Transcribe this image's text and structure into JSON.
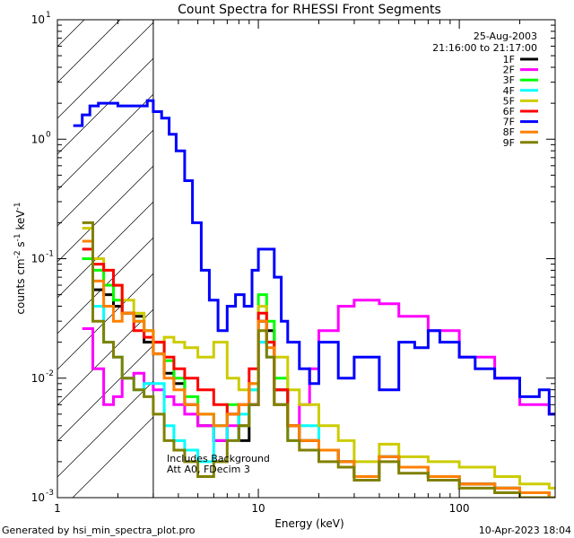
{
  "chart_data": {
    "type": "line",
    "title": "Count Spectra for RHESSI Front Segments",
    "date_label": "25-Aug-2003",
    "time_label": "21:16:00 to 21:17:00",
    "xlabel": "Energy (keV)",
    "ylabel_main": "counts cm",
    "ylabel_sup1": "-2",
    "ylabel_mid": " s",
    "ylabel_sup2": "-1",
    "ylabel_end": " keV",
    "ylabel_sup3": "-1",
    "xscale": "log",
    "yscale": "log",
    "xlim": [
      1,
      300
    ],
    "ylim": [
      0.001,
      10
    ],
    "x_ticks": [
      {
        "v": 1,
        "label": "1"
      },
      {
        "v": 10,
        "label": "10"
      },
      {
        "v": 100,
        "label": "100"
      }
    ],
    "y_ticks": [
      {
        "v": 0.001,
        "base": "10",
        "exp": "-3"
      },
      {
        "v": 0.01,
        "base": "10",
        "exp": "-2"
      },
      {
        "v": 0.1,
        "base": "10",
        "exp": "-1"
      },
      {
        "v": 1,
        "base": "10",
        "exp": "0"
      },
      {
        "v": 10,
        "base": "10",
        "exp": "1"
      }
    ],
    "excluded_region": {
      "x_from": 1,
      "x_to": 3
    },
    "annotation_line1": "Includes Background",
    "annotation_line2": "Att A0, FDecim 3",
    "legend_position": "top-right",
    "series": [
      {
        "name": "1F",
        "color": "#000000",
        "x": [
          1.33,
          1.5,
          1.7,
          1.9,
          2.1,
          2.4,
          2.7,
          3.0,
          3.4,
          3.8,
          4.3,
          5,
          6,
          7,
          8,
          9,
          10,
          11,
          12,
          14,
          16,
          20,
          25,
          30,
          40,
          50,
          70,
          100,
          150,
          200,
          280
        ],
        "values": [
          0.1,
          0.055,
          0.05,
          0.04,
          0.035,
          0.033,
          0.02,
          0.016,
          0.011,
          0.009,
          0.006,
          0.004,
          0.003,
          0.005,
          0.003,
          0.006,
          0.03,
          0.025,
          0.008,
          0.004,
          0.003,
          0.0025,
          0.002,
          0.0015,
          0.0022,
          0.0018,
          0.0015,
          0.0013,
          0.0012,
          0.0011,
          0.001
        ]
      },
      {
        "name": "2F",
        "color": "#ff00ff",
        "x": [
          1.33,
          1.5,
          1.7,
          1.9,
          2.1,
          2.4,
          2.7,
          3.0,
          3.4,
          3.8,
          4.3,
          5,
          6,
          7,
          8,
          9,
          10,
          11,
          12,
          14,
          16,
          18,
          20,
          25,
          30,
          40,
          50,
          70,
          100,
          150,
          200,
          280
        ],
        "values": [
          0.026,
          0.012,
          0.006,
          0.007,
          0.01,
          0.011,
          0.009,
          0.008,
          0.007,
          0.006,
          0.005,
          0.004,
          0.003,
          0.004,
          0.004,
          0.006,
          0.02,
          0.02,
          0.006,
          0.004,
          0.006,
          0.012,
          0.025,
          0.04,
          0.045,
          0.042,
          0.033,
          0.025,
          0.015,
          0.01,
          0.006,
          0.005
        ]
      },
      {
        "name": "3F",
        "color": "#00ff00",
        "x": [
          1.33,
          1.5,
          1.7,
          1.9,
          2.1,
          2.4,
          2.7,
          3.0,
          3.4,
          3.8,
          4.3,
          5,
          6,
          7,
          8,
          9,
          10,
          11,
          12,
          14,
          16,
          20,
          25,
          30,
          40,
          50,
          70,
          100,
          150,
          200,
          280
        ],
        "values": [
          0.1,
          0.08,
          0.06,
          0.045,
          0.035,
          0.03,
          0.025,
          0.02,
          0.014,
          0.01,
          0.007,
          0.005,
          0.004,
          0.006,
          0.004,
          0.008,
          0.05,
          0.03,
          0.01,
          0.004,
          0.003,
          0.0025,
          0.002,
          0.0015,
          0.0022,
          0.0018,
          0.0015,
          0.0013,
          0.0012,
          0.0011,
          0.001
        ]
      },
      {
        "name": "4F",
        "color": "#00ffff",
        "x": [
          1.33,
          1.5,
          1.7,
          1.9,
          2.1,
          2.4,
          2.7,
          3.0,
          3.4,
          3.8,
          4.3,
          5,
          6,
          7,
          8,
          9,
          10,
          11,
          12,
          14,
          16,
          20,
          25,
          30,
          40,
          50,
          70,
          100,
          150,
          200,
          280
        ],
        "values": [
          0.12,
          0.04,
          0.02,
          0.015,
          0.01,
          0.008,
          0.009,
          0.009,
          0.004,
          0.003,
          0.0025,
          0.002,
          0.004,
          0.003,
          0.005,
          0.008,
          0.02,
          0.015,
          0.006,
          0.003,
          0.004,
          0.0025,
          0.002,
          0.0015,
          0.0022,
          0.0018,
          0.0015,
          0.0013,
          0.0012,
          0.0011,
          0.001
        ]
      },
      {
        "name": "5F",
        "color": "#cccc00",
        "x": [
          1.33,
          1.5,
          1.7,
          1.9,
          2.1,
          2.4,
          2.7,
          3.0,
          3.4,
          3.8,
          4.3,
          5,
          6,
          7,
          8,
          9,
          10,
          11,
          12,
          14,
          16,
          20,
          25,
          30,
          40,
          50,
          70,
          100,
          150,
          200,
          280
        ],
        "values": [
          0.18,
          0.1,
          0.08,
          0.06,
          0.045,
          0.035,
          0.025,
          0.02,
          0.022,
          0.02,
          0.018,
          0.015,
          0.02,
          0.01,
          0.008,
          0.009,
          0.04,
          0.02,
          0.015,
          0.008,
          0.006,
          0.004,
          0.003,
          0.002,
          0.0028,
          0.0022,
          0.002,
          0.0018,
          0.0015,
          0.0013,
          0.0012
        ]
      },
      {
        "name": "6F",
        "color": "#ff0000",
        "x": [
          1.33,
          1.5,
          1.7,
          1.9,
          2.1,
          2.4,
          2.7,
          3.0,
          3.4,
          3.8,
          4.3,
          5,
          6,
          7,
          8,
          9,
          10,
          11,
          12,
          14,
          16,
          20,
          25,
          30,
          40,
          50,
          70,
          100,
          150,
          200,
          280
        ],
        "values": [
          0.12,
          0.09,
          0.08,
          0.06,
          0.035,
          0.025,
          0.022,
          0.02,
          0.015,
          0.012,
          0.01,
          0.008,
          0.006,
          0.005,
          0.006,
          0.012,
          0.035,
          0.02,
          0.008,
          0.004,
          0.003,
          0.0025,
          0.002,
          0.0015,
          0.0022,
          0.0018,
          0.0015,
          0.0013,
          0.0012,
          0.0011,
          0.001
        ]
      },
      {
        "name": "7F",
        "color": "#0000ff",
        "x": [
          1.2,
          1.33,
          1.45,
          1.6,
          1.8,
          2.0,
          2.2,
          2.5,
          2.8,
          3.0,
          3.3,
          3.6,
          3.9,
          4.3,
          4.7,
          5.2,
          5.7,
          6.3,
          7.0,
          7.7,
          8.5,
          9.3,
          10,
          11,
          12,
          13,
          14,
          16,
          18,
          20,
          25,
          30,
          40,
          50,
          60,
          70,
          80,
          100,
          120,
          150,
          200,
          250,
          280
        ],
        "values": [
          1.3,
          1.6,
          1.9,
          2.0,
          2.0,
          1.9,
          1.9,
          1.9,
          2.1,
          1.7,
          1.5,
          1.1,
          0.8,
          0.45,
          0.2,
          0.08,
          0.045,
          0.025,
          0.04,
          0.05,
          0.04,
          0.08,
          0.12,
          0.12,
          0.07,
          0.03,
          0.02,
          0.012,
          0.009,
          0.02,
          0.01,
          0.015,
          0.008,
          0.02,
          0.018,
          0.025,
          0.02,
          0.015,
          0.012,
          0.01,
          0.007,
          0.008,
          0.005
        ]
      },
      {
        "name": "8F",
        "color": "#ff8000",
        "x": [
          1.33,
          1.5,
          1.7,
          1.9,
          2.1,
          2.4,
          2.7,
          3.0,
          3.4,
          3.8,
          4.3,
          5,
          6,
          7,
          8,
          9,
          10,
          11,
          12,
          14,
          16,
          20,
          25,
          30,
          40,
          50,
          70,
          100,
          150,
          200,
          280
        ],
        "values": [
          0.14,
          0.065,
          0.04,
          0.03,
          0.035,
          0.03,
          0.025,
          0.016,
          0.01,
          0.008,
          0.006,
          0.005,
          0.004,
          0.005,
          0.006,
          0.009,
          0.03,
          0.018,
          0.006,
          0.004,
          0.003,
          0.0025,
          0.002,
          0.0015,
          0.0022,
          0.0018,
          0.0015,
          0.0013,
          0.0012,
          0.0011,
          0.001
        ]
      },
      {
        "name": "9F",
        "color": "#808000",
        "x": [
          1.33,
          1.5,
          1.7,
          1.9,
          2.1,
          2.4,
          2.7,
          3.0,
          3.4,
          3.8,
          4.3,
          5,
          6,
          7,
          8,
          9,
          10,
          11,
          12,
          14,
          16,
          20,
          25,
          30,
          40,
          50,
          70,
          100,
          150,
          200,
          280
        ],
        "values": [
          0.2,
          0.03,
          0.02,
          0.015,
          0.01,
          0.008,
          0.007,
          0.005,
          0.003,
          0.0025,
          0.002,
          0.0015,
          0.002,
          0.003,
          0.004,
          0.006,
          0.025,
          0.015,
          0.006,
          0.003,
          0.0025,
          0.002,
          0.0018,
          0.0014,
          0.002,
          0.0016,
          0.0014,
          0.0012,
          0.0011,
          0.001,
          0.001
        ]
      }
    ]
  },
  "footer": {
    "generated_by": "Generated by hsi_min_spectra_plot.pro",
    "timestamp": "10-Apr-2023 18:04"
  }
}
